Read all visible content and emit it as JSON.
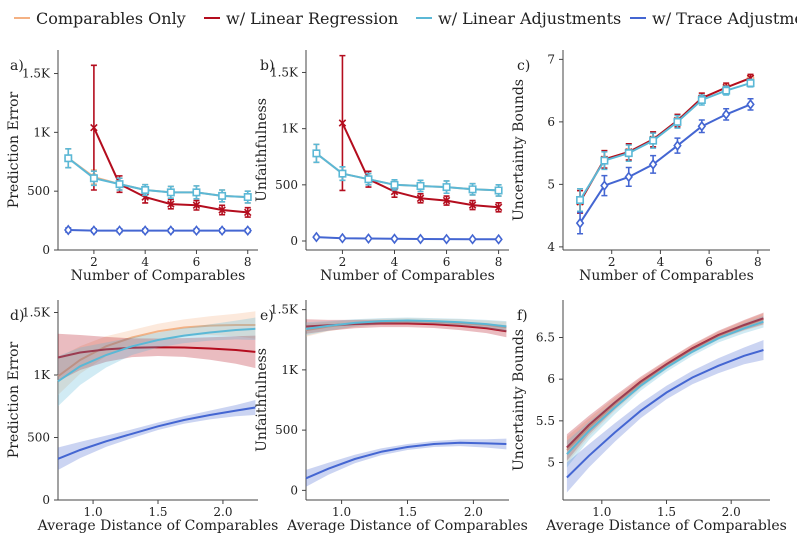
{
  "legend": {
    "items": [
      {
        "label": "Comparables Only",
        "color": "#f4b183"
      },
      {
        "label": "w/ Linear Regression",
        "color": "#b40d1e"
      },
      {
        "label": "w/ Linear Adjustments",
        "color": "#5bb8d6"
      },
      {
        "label": "w/ Trace Adjustment",
        "color": "#4466d2"
      }
    ]
  },
  "chart_data": [
    {
      "panel": "a)",
      "type": "line",
      "title": "",
      "xlabel": "Number of Comparables",
      "ylabel": "Prediction Error",
      "xlim": [
        0.6,
        8.4
      ],
      "ylim": [
        0,
        1700
      ],
      "xticks": [
        2,
        4,
        6,
        8
      ],
      "xtick_labels": [
        "2",
        "4",
        "6",
        "8"
      ],
      "yticks": [
        0,
        500,
        1000,
        1500
      ],
      "ytick_labels": [
        "0",
        "500",
        "1K",
        "1.5K"
      ],
      "x": [
        1,
        2,
        3,
        4,
        5,
        6,
        7,
        8
      ],
      "series": [
        {
          "name": "Comparables Only",
          "color": "#f4b183",
          "marker": "o",
          "values": [
            780,
            620,
            560,
            510,
            490,
            490,
            460,
            450
          ],
          "err": [
            80,
            60,
            50,
            45,
            50,
            55,
            50,
            50
          ]
        },
        {
          "name": "w/ Linear Regression",
          "color": "#b40d1e",
          "marker": "x",
          "values": [
            null,
            1040,
            560,
            450,
            390,
            380,
            340,
            320
          ],
          "err_low": [
            null,
            530,
            70,
            50,
            40,
            40,
            40,
            40
          ],
          "err_high": [
            null,
            530,
            70,
            50,
            40,
            40,
            40,
            40
          ]
        },
        {
          "name": "w/ Linear Adjustments",
          "color": "#5bb8d6",
          "marker": "s",
          "values": [
            780,
            610,
            560,
            510,
            490,
            490,
            460,
            450
          ],
          "err": [
            80,
            60,
            50,
            45,
            50,
            55,
            50,
            50
          ]
        },
        {
          "name": "w/ Trace Adjustment",
          "color": "#4466d2",
          "marker": "d",
          "values": [
            170,
            165,
            165,
            165,
            165,
            165,
            165,
            165
          ],
          "err": [
            18,
            15,
            15,
            15,
            15,
            15,
            15,
            15
          ]
        }
      ]
    },
    {
      "panel": "b)",
      "type": "line",
      "title": "",
      "xlabel": "Number of Comparables",
      "ylabel": "Unfaithfulness",
      "xlim": [
        0.6,
        8.4
      ],
      "ylim": [
        -80,
        1700
      ],
      "xticks": [
        2,
        4,
        6,
        8
      ],
      "xtick_labels": [
        "2",
        "4",
        "6",
        "8"
      ],
      "yticks": [
        0,
        500,
        1000,
        1500
      ],
      "ytick_labels": [
        "0",
        "500",
        "1K",
        "1.5K"
      ],
      "x": [
        1,
        2,
        3,
        4,
        5,
        6,
        7,
        8
      ],
      "series": [
        {
          "name": "Comparables Only",
          "color": "#f4b183",
          "marker": "o",
          "values": [
            780,
            600,
            550,
            500,
            490,
            480,
            460,
            450
          ],
          "err": [
            80,
            60,
            50,
            45,
            50,
            55,
            50,
            50
          ]
        },
        {
          "name": "w/ Linear Regression",
          "color": "#b40d1e",
          "marker": "x",
          "values": [
            null,
            1050,
            550,
            440,
            380,
            360,
            320,
            300
          ],
          "err_low": [
            null,
            600,
            70,
            50,
            40,
            40,
            40,
            40
          ],
          "err_high": [
            null,
            600,
            70,
            50,
            40,
            40,
            40,
            40
          ]
        },
        {
          "name": "w/ Linear Adjustments",
          "color": "#5bb8d6",
          "marker": "s",
          "values": [
            780,
            600,
            550,
            500,
            490,
            480,
            460,
            450
          ],
          "err": [
            80,
            60,
            50,
            45,
            50,
            55,
            50,
            50
          ]
        },
        {
          "name": "w/ Trace Adjustment",
          "color": "#4466d2",
          "marker": "d",
          "values": [
            35,
            25,
            22,
            20,
            18,
            17,
            16,
            15
          ],
          "err": [
            8,
            6,
            5,
            5,
            5,
            5,
            5,
            5
          ]
        }
      ]
    },
    {
      "panel": "c)",
      "type": "line",
      "title": "",
      "xlabel": "Number of Comparables",
      "ylabel": "Uncertainty Bounds",
      "xlim": [
        0.0,
        8.5
      ],
      "ylim": [
        3.95,
        7.15
      ],
      "xticks": [
        2,
        4,
        6,
        8
      ],
      "xtick_labels": [
        "2",
        "4",
        "6",
        "8"
      ],
      "yticks": [
        4,
        5,
        6,
        7
      ],
      "ytick_labels": [
        "4",
        "5",
        "6",
        "7"
      ],
      "x": [
        0.7,
        1.7,
        2.7,
        3.7,
        4.7,
        5.7,
        6.7,
        7.7
      ],
      "series": [
        {
          "name": "Comparables Only",
          "color": "#f4b183",
          "marker": "o",
          "values": [
            4.72,
            5.4,
            5.52,
            5.72,
            6.02,
            6.38,
            6.55,
            6.7
          ],
          "err": [
            0.18,
            0.14,
            0.13,
            0.12,
            0.1,
            0.08,
            0.07,
            0.06
          ]
        },
        {
          "name": "w/ Linear Regression",
          "color": "#b40d1e",
          "marker": "x",
          "values": [
            4.72,
            5.4,
            5.52,
            5.72,
            6.02,
            6.38,
            6.55,
            6.7
          ],
          "err": [
            0.18,
            0.14,
            0.13,
            0.12,
            0.1,
            0.08,
            0.07,
            0.06
          ]
        },
        {
          "name": "w/ Linear Adjustments",
          "color": "#5bb8d6",
          "marker": "s",
          "values": [
            4.75,
            5.38,
            5.5,
            5.7,
            6.0,
            6.35,
            6.5,
            6.62
          ],
          "err": [
            0.18,
            0.14,
            0.13,
            0.12,
            0.1,
            0.08,
            0.07,
            0.06
          ]
        },
        {
          "name": "w/ Trace Adjustment",
          "color": "#4466d2",
          "marker": "d",
          "values": [
            4.38,
            4.98,
            5.12,
            5.32,
            5.62,
            5.93,
            6.12,
            6.28
          ],
          "err": [
            0.17,
            0.16,
            0.15,
            0.14,
            0.12,
            0.1,
            0.09,
            0.09
          ]
        }
      ]
    },
    {
      "panel": "d)",
      "type": "line",
      "title": "",
      "xlabel": "Average Distance of Comparables",
      "ylabel": "Prediction Error",
      "xlim": [
        0.73,
        2.27
      ],
      "ylim": [
        0,
        1600
      ],
      "xticks": [
        1.0,
        1.5,
        2.0
      ],
      "xtick_labels": [
        "1.0",
        "1.5",
        "2.0"
      ],
      "yticks": [
        0,
        500,
        1000,
        1500
      ],
      "ytick_labels": [
        "0",
        "500",
        "1K",
        "1.5K"
      ],
      "x": [
        0.73,
        0.9,
        1.1,
        1.3,
        1.5,
        1.7,
        1.9,
        2.1,
        2.25
      ],
      "series": [
        {
          "name": "Comparables Only",
          "color": "#f4b183",
          "values": [
            990,
            1120,
            1230,
            1300,
            1350,
            1380,
            1395,
            1400,
            1400
          ],
          "band": [
            150,
            110,
            80,
            60,
            60,
            65,
            75,
            90,
            110
          ]
        },
        {
          "name": "w/ Linear Regression",
          "color": "#b40d1e",
          "values": [
            1140,
            1180,
            1205,
            1218,
            1222,
            1220,
            1212,
            1200,
            1185
          ],
          "band": [
            190,
            140,
            100,
            75,
            70,
            75,
            90,
            110,
            130
          ]
        },
        {
          "name": "w/ Linear Adjustments",
          "color": "#5bb8d6",
          "values": [
            950,
            1070,
            1160,
            1230,
            1280,
            1315,
            1340,
            1360,
            1370
          ],
          "band": [
            200,
            150,
            100,
            70,
            60,
            60,
            65,
            75,
            90
          ]
        },
        {
          "name": "w/ Trace Adjustment",
          "color": "#4466d2",
          "values": [
            330,
            400,
            470,
            530,
            590,
            640,
            680,
            715,
            740
          ],
          "band": [
            90,
            65,
            45,
            35,
            30,
            30,
            35,
            45,
            60
          ]
        }
      ]
    },
    {
      "panel": "e)",
      "type": "line",
      "title": "",
      "xlabel": "Average Distance of Comparables",
      "ylabel": "Unfaithfulness",
      "xlim": [
        0.73,
        2.27
      ],
      "ylim": [
        -80,
        1580
      ],
      "xticks": [
        1.0,
        1.5,
        2.0
      ],
      "xtick_labels": [
        "1.0",
        "1.5",
        "2.0"
      ],
      "yticks": [
        0,
        500,
        1000,
        1500
      ],
      "ytick_labels": [
        "0",
        "500",
        "1K",
        "1.5K"
      ],
      "x": [
        0.73,
        0.9,
        1.1,
        1.3,
        1.5,
        1.7,
        1.9,
        2.1,
        2.25
      ],
      "series": [
        {
          "name": "Comparables Only",
          "color": "#f4b183",
          "values": [
            1330,
            1360,
            1385,
            1400,
            1405,
            1400,
            1390,
            1375,
            1355
          ],
          "band": [
            55,
            40,
            30,
            25,
            25,
            25,
            30,
            35,
            45
          ]
        },
        {
          "name": "w/ Linear Regression",
          "color": "#b40d1e",
          "values": [
            1360,
            1370,
            1380,
            1385,
            1385,
            1378,
            1365,
            1345,
            1320
          ],
          "band": [
            60,
            45,
            35,
            30,
            30,
            30,
            35,
            40,
            50
          ]
        },
        {
          "name": "w/ Linear Adjustments",
          "color": "#5bb8d6",
          "values": [
            1340,
            1365,
            1390,
            1405,
            1410,
            1405,
            1395,
            1380,
            1360
          ],
          "band": [
            55,
            40,
            30,
            25,
            25,
            25,
            30,
            35,
            45
          ]
        },
        {
          "name": "w/ Trace Adjustment",
          "color": "#4466d2",
          "values": [
            100,
            180,
            260,
            320,
            360,
            385,
            395,
            390,
            385
          ],
          "band": [
            70,
            50,
            35,
            28,
            25,
            25,
            28,
            35,
            45
          ]
        }
      ]
    },
    {
      "panel": "f)",
      "type": "line",
      "title": "",
      "xlabel": "Average Distance of Comparables",
      "ylabel": "Uncertainty Bounds",
      "xlim": [
        0.7,
        2.3
      ],
      "ylim": [
        4.55,
        6.95
      ],
      "xticks": [
        1.0,
        1.5,
        2.0
      ],
      "xtick_labels": [
        "1.0",
        "1.5",
        "2.0"
      ],
      "yticks": [
        5.0,
        5.5,
        6.0,
        6.5
      ],
      "ytick_labels": [
        "5",
        "5.5",
        "6",
        "6.5"
      ],
      "x": [
        0.73,
        0.9,
        1.1,
        1.3,
        1.5,
        1.7,
        1.9,
        2.1,
        2.25
      ],
      "series": [
        {
          "name": "Comparables Only",
          "color": "#f4b183",
          "values": [
            5.15,
            5.42,
            5.7,
            5.95,
            6.17,
            6.36,
            6.52,
            6.64,
            6.72
          ],
          "band": [
            0.16,
            0.11,
            0.08,
            0.06,
            0.05,
            0.05,
            0.05,
            0.06,
            0.07
          ]
        },
        {
          "name": "w/ Linear Regression",
          "color": "#b40d1e",
          "values": [
            5.18,
            5.45,
            5.72,
            5.97,
            6.18,
            6.37,
            6.53,
            6.65,
            6.73
          ],
          "band": [
            0.16,
            0.11,
            0.08,
            0.06,
            0.05,
            0.05,
            0.05,
            0.06,
            0.07
          ]
        },
        {
          "name": "w/ Linear Adjustments",
          "color": "#5bb8d6",
          "values": [
            5.1,
            5.38,
            5.66,
            5.92,
            6.14,
            6.33,
            6.49,
            6.61,
            6.69
          ],
          "band": [
            0.16,
            0.11,
            0.08,
            0.06,
            0.05,
            0.05,
            0.05,
            0.06,
            0.07
          ]
        },
        {
          "name": "w/ Trace Adjustment",
          "color": "#4466d2",
          "values": [
            4.82,
            5.08,
            5.36,
            5.62,
            5.84,
            6.02,
            6.16,
            6.28,
            6.35
          ],
          "band": [
            0.18,
            0.14,
            0.11,
            0.09,
            0.08,
            0.08,
            0.09,
            0.1,
            0.12
          ]
        }
      ]
    }
  ]
}
